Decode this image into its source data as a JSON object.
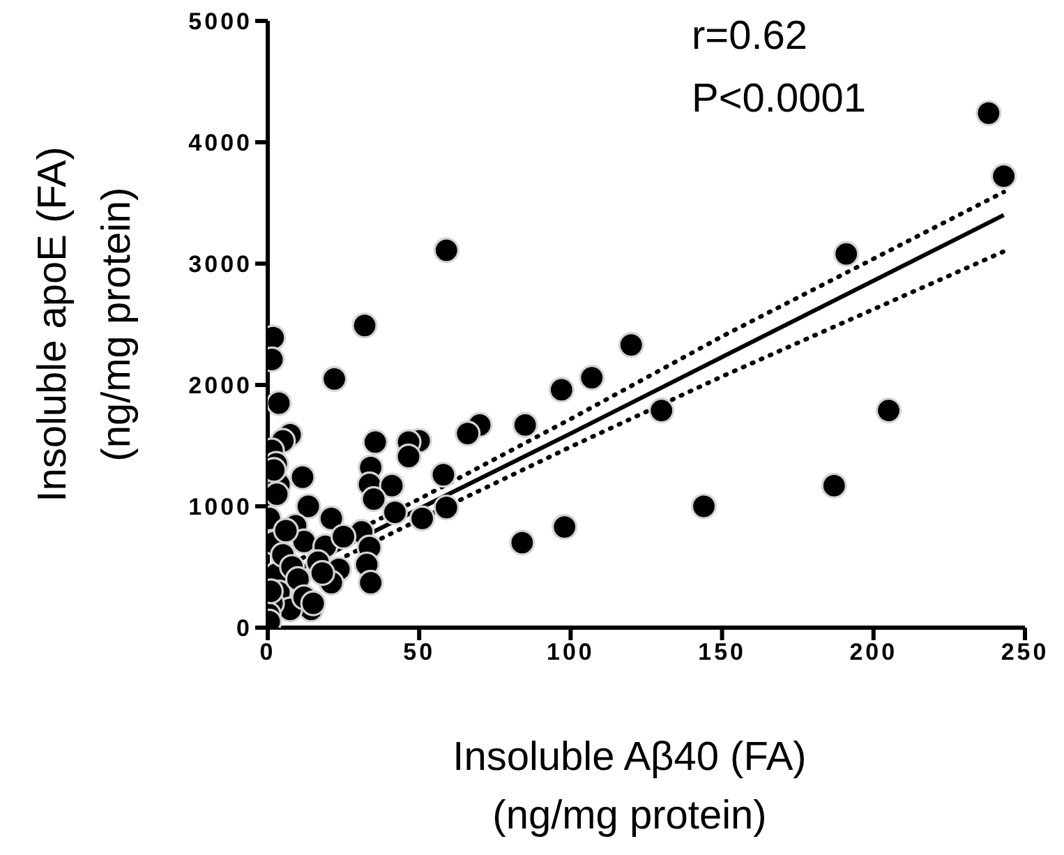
{
  "chart_data": {
    "type": "scatter",
    "xlabel": "Insoluble Aβ40 (FA)\n(ng/mg protein)",
    "ylabel": "Insoluble apoE (FA)\n(ng/mg protein)",
    "annotations": [
      "r=0.62",
      "P<0.0001"
    ],
    "xlim": [
      0,
      250
    ],
    "xticks": [
      0,
      50,
      100,
      150,
      200,
      250
    ],
    "ylim": [
      0,
      5000
    ],
    "yticks": [
      0,
      1000,
      2000,
      3000,
      4000,
      5000
    ],
    "grid": false,
    "legend": false,
    "marker": "circle",
    "series": [
      {
        "type": "line",
        "color": "#000000",
        "line_style": "dotted",
        "marker": "none",
        "x": [
          0,
          50,
          100,
          150,
          243
        ],
        "values": [
          430,
          1060,
          1720,
          2400,
          3590
        ]
      },
      {
        "type": "line",
        "color": "#000000",
        "line_style": "dotted",
        "marker": "none",
        "x": [
          0,
          50,
          100,
          150,
          243
        ],
        "values": [
          270,
          890,
          1490,
          2070,
          3100
        ]
      },
      {
        "type": "line",
        "color": "#000000",
        "line_style": "solid",
        "marker": "none",
        "x": [
          0,
          50,
          100,
          150,
          243
        ],
        "values": [
          350,
          980,
          1600,
          2230,
          3400
        ]
      },
      {
        "type": "scatter",
        "color": "#000000",
        "x": [
          238,
          243,
          191,
          205,
          187,
          144,
          130,
          120,
          107,
          97,
          98,
          84,
          85,
          70,
          66,
          58,
          59,
          51,
          50,
          59,
          32,
          1.8,
          1.4,
          22,
          3.7,
          7.4,
          5,
          1.4,
          35.5,
          46.5,
          46.5,
          34,
          2.8,
          11.5,
          33.6,
          41,
          3.7,
          35,
          13.4,
          42,
          21,
          31,
          9.2,
          12,
          19,
          33.6,
          16.6,
          32.7,
          2.8,
          23.5,
          34,
          21,
          3.7,
          14.3,
          7.4,
          1.4,
          0.3,
          0.5,
          1,
          2,
          0.5,
          3,
          2,
          5,
          6,
          8,
          10,
          12,
          15,
          18,
          25
        ],
        "values": [
          4240,
          3720,
          3080,
          1790,
          1170,
          1000,
          1790,
          2330,
          2060,
          1960,
          830,
          700,
          1670,
          1670,
          1600,
          1260,
          3110,
          900,
          1540,
          990,
          2490,
          2390,
          2210,
          2050,
          1850,
          1590,
          1540,
          1460,
          1530,
          1530,
          1410,
          1320,
          1350,
          1240,
          1180,
          1170,
          1180,
          1060,
          1000,
          950,
          900,
          790,
          840,
          710,
          670,
          660,
          540,
          520,
          440,
          480,
          370,
          370,
          290,
          150,
          150,
          200,
          110,
          50,
          300,
          700,
          900,
          1100,
          1300,
          600,
          800,
          500,
          400,
          250,
          200,
          450,
          750
        ]
      }
    ]
  }
}
